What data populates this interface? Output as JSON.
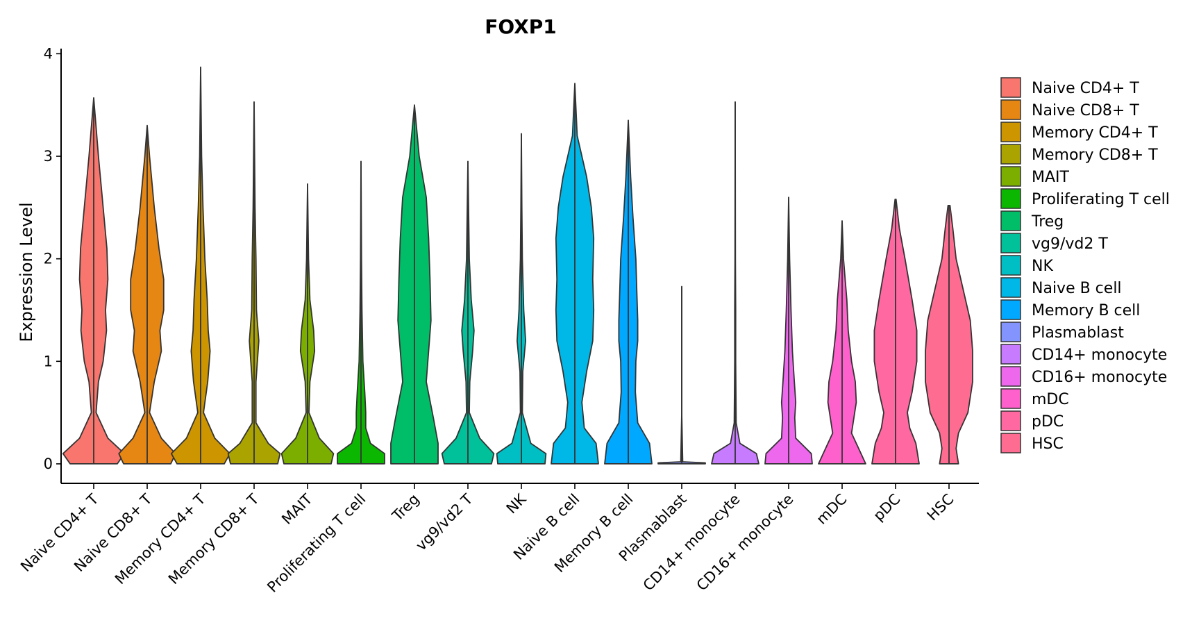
{
  "chart_data": {
    "type": "violin",
    "title": "FOXP1",
    "xlabel": "",
    "ylabel": "Expression Level",
    "ylim": [
      -0.19,
      4.05
    ],
    "yticks": [
      "0",
      "1",
      "2",
      "3",
      "4"
    ],
    "categories": [
      "Naive CD4+ T",
      "Naive CD8+ T",
      "Memory CD4+ T",
      "Memory CD8+ T",
      "MAIT",
      "Proliferating T cell",
      "Treg",
      "vg9/vd2 T",
      "NK",
      "Naive B cell",
      "Memory B cell",
      "Plasmablast",
      "CD14+ monocyte",
      "CD16+ monocyte",
      "mDC",
      "pDC",
      "HSC"
    ],
    "colors": [
      "#F8766D",
      "#E68613",
      "#CD9600",
      "#ABA300",
      "#7CAE00",
      "#0CB702",
      "#00BE67",
      "#00C19A",
      "#00BFC4",
      "#00B8E7",
      "#00A9FF",
      "#8494FF",
      "#C77CFF",
      "#ED68ED",
      "#FF61CC",
      "#FF68A1",
      "#FF6C91"
    ],
    "legend_entries": [
      "Naive CD4+ T",
      "Naive CD8+ T",
      "Memory CD4+ T",
      "Memory CD8+ T",
      "MAIT",
      "Proliferating T cell",
      "Treg",
      "vg9/vd2 T",
      "NK",
      "Naive B cell",
      "Memory B cell",
      "Plasmablast",
      "CD14+ monocyte",
      "CD16+ monocyte",
      "mDC",
      "pDC",
      "HSC"
    ],
    "legend_position": "right",
    "violins": [
      {
        "name": "Naive CD4+ T",
        "max": 3.57,
        "profile": [
          [
            0,
            0.5
          ],
          [
            0.1,
            0.65
          ],
          [
            0.25,
            0.3
          ],
          [
            0.5,
            0.05
          ],
          [
            0.8,
            0.1
          ],
          [
            1.0,
            0.2
          ],
          [
            1.3,
            0.27
          ],
          [
            1.5,
            0.25
          ],
          [
            1.8,
            0.3
          ],
          [
            2.1,
            0.28
          ],
          [
            2.5,
            0.2
          ],
          [
            3.0,
            0.1
          ],
          [
            3.57,
            0
          ]
        ]
      },
      {
        "name": "Naive CD8+ T",
        "max": 3.3,
        "profile": [
          [
            0,
            0.5
          ],
          [
            0.1,
            0.6
          ],
          [
            0.25,
            0.3
          ],
          [
            0.5,
            0.05
          ],
          [
            0.8,
            0.15
          ],
          [
            1.1,
            0.3
          ],
          [
            1.3,
            0.27
          ],
          [
            1.5,
            0.35
          ],
          [
            1.8,
            0.35
          ],
          [
            2.1,
            0.25
          ],
          [
            2.5,
            0.15
          ],
          [
            3.0,
            0.05
          ],
          [
            3.3,
            0
          ]
        ]
      },
      {
        "name": "Memory CD4+ T",
        "max": 3.87,
        "profile": [
          [
            0,
            0.5
          ],
          [
            0.1,
            0.62
          ],
          [
            0.25,
            0.3
          ],
          [
            0.5,
            0.06
          ],
          [
            0.8,
            0.15
          ],
          [
            1.1,
            0.2
          ],
          [
            1.3,
            0.16
          ],
          [
            1.6,
            0.14
          ],
          [
            2.0,
            0.09
          ],
          [
            2.5,
            0.05
          ],
          [
            3.0,
            0.02
          ],
          [
            3.87,
            0
          ]
        ]
      },
      {
        "name": "Memory CD8+ T",
        "max": 3.53,
        "profile": [
          [
            0,
            0.5
          ],
          [
            0.1,
            0.55
          ],
          [
            0.2,
            0.3
          ],
          [
            0.4,
            0.04
          ],
          [
            0.8,
            0.04
          ],
          [
            1.2,
            0.1
          ],
          [
            1.5,
            0.05
          ],
          [
            2.0,
            0.04
          ],
          [
            2.5,
            0.02
          ],
          [
            3.53,
            0
          ]
        ]
      },
      {
        "name": "MAIT",
        "max": 2.73,
        "profile": [
          [
            0,
            0.5
          ],
          [
            0.1,
            0.55
          ],
          [
            0.25,
            0.25
          ],
          [
            0.5,
            0.03
          ],
          [
            0.8,
            0.05
          ],
          [
            1.1,
            0.15
          ],
          [
            1.3,
            0.13
          ],
          [
            1.6,
            0.05
          ],
          [
            2.0,
            0.02
          ],
          [
            2.73,
            0
          ]
        ]
      },
      {
        "name": "Proliferating T cell",
        "max": 2.95,
        "profile": [
          [
            0,
            0.5
          ],
          [
            0.1,
            0.5
          ],
          [
            0.2,
            0.2
          ],
          [
            0.35,
            0.1
          ],
          [
            0.5,
            0.1
          ],
          [
            0.7,
            0.08
          ],
          [
            1.0,
            0.04
          ],
          [
            1.5,
            0.02
          ],
          [
            2.0,
            0.01
          ],
          [
            2.95,
            0
          ]
        ]
      },
      {
        "name": "Treg",
        "max": 3.5,
        "profile": [
          [
            0,
            0.5
          ],
          [
            0.2,
            0.5
          ],
          [
            0.45,
            0.4
          ],
          [
            0.8,
            0.25
          ],
          [
            1.1,
            0.3
          ],
          [
            1.4,
            0.35
          ],
          [
            1.8,
            0.33
          ],
          [
            2.2,
            0.3
          ],
          [
            2.6,
            0.25
          ],
          [
            3.0,
            0.1
          ],
          [
            3.5,
            0
          ]
        ]
      },
      {
        "name": "vg9/vd2 T",
        "max": 2.95,
        "profile": [
          [
            0,
            0.5
          ],
          [
            0.1,
            0.55
          ],
          [
            0.25,
            0.25
          ],
          [
            0.5,
            0.03
          ],
          [
            0.8,
            0.04
          ],
          [
            1.1,
            0.1
          ],
          [
            1.3,
            0.13
          ],
          [
            1.6,
            0.07
          ],
          [
            2.0,
            0.03
          ],
          [
            2.95,
            0
          ]
        ]
      },
      {
        "name": "NK",
        "max": 3.22,
        "profile": [
          [
            0,
            0.5
          ],
          [
            0.1,
            0.52
          ],
          [
            0.2,
            0.2
          ],
          [
            0.5,
            0.02
          ],
          [
            0.9,
            0.03
          ],
          [
            1.2,
            0.09
          ],
          [
            1.5,
            0.05
          ],
          [
            2.0,
            0.02
          ],
          [
            2.5,
            0.01
          ],
          [
            3.22,
            0
          ]
        ]
      },
      {
        "name": "Naive B cell",
        "max": 3.71,
        "profile": [
          [
            0,
            0.5
          ],
          [
            0.2,
            0.45
          ],
          [
            0.35,
            0.2
          ],
          [
            0.6,
            0.15
          ],
          [
            0.9,
            0.25
          ],
          [
            1.2,
            0.38
          ],
          [
            1.5,
            0.4
          ],
          [
            1.8,
            0.38
          ],
          [
            2.2,
            0.4
          ],
          [
            2.5,
            0.35
          ],
          [
            2.8,
            0.25
          ],
          [
            3.2,
            0.05
          ],
          [
            3.71,
            0
          ]
        ]
      },
      {
        "name": "Memory B cell",
        "max": 3.35,
        "profile": [
          [
            0,
            0.5
          ],
          [
            0.2,
            0.45
          ],
          [
            0.4,
            0.2
          ],
          [
            0.7,
            0.15
          ],
          [
            1.0,
            0.16
          ],
          [
            1.2,
            0.2
          ],
          [
            1.4,
            0.2
          ],
          [
            1.7,
            0.18
          ],
          [
            2.0,
            0.16
          ],
          [
            2.4,
            0.1
          ],
          [
            2.8,
            0.05
          ],
          [
            3.35,
            0
          ]
        ]
      },
      {
        "name": "Plasmablast",
        "max": 1.73,
        "profile": [
          [
            0,
            0.5
          ],
          [
            0.01,
            0.5
          ],
          [
            0.02,
            0.02
          ],
          [
            0.5,
            0
          ],
          [
            1.73,
            0
          ]
        ]
      },
      {
        "name": "CD14+ monocyte",
        "max": 3.53,
        "profile": [
          [
            0,
            0.5
          ],
          [
            0.1,
            0.45
          ],
          [
            0.2,
            0.1
          ],
          [
            0.4,
            0.02
          ],
          [
            1.0,
            0.01
          ],
          [
            1.5,
            0.01
          ],
          [
            2.0,
            0.005
          ],
          [
            3.53,
            0
          ]
        ]
      },
      {
        "name": "CD16+ monocyte",
        "max": 2.6,
        "profile": [
          [
            0,
            0.5
          ],
          [
            0.1,
            0.48
          ],
          [
            0.25,
            0.15
          ],
          [
            0.45,
            0.13
          ],
          [
            0.6,
            0.15
          ],
          [
            0.8,
            0.12
          ],
          [
            1.1,
            0.08
          ],
          [
            1.5,
            0.05
          ],
          [
            2.0,
            0.02
          ],
          [
            2.6,
            0
          ]
        ]
      },
      {
        "name": "mDC",
        "max": 2.37,
        "profile": [
          [
            0,
            0.5
          ],
          [
            0.15,
            0.35
          ],
          [
            0.3,
            0.2
          ],
          [
            0.45,
            0.25
          ],
          [
            0.6,
            0.3
          ],
          [
            0.8,
            0.28
          ],
          [
            1.0,
            0.2
          ],
          [
            1.3,
            0.13
          ],
          [
            1.6,
            0.1
          ],
          [
            2.0,
            0.03
          ],
          [
            2.37,
            0
          ]
        ]
      },
      {
        "name": "pDC",
        "max": 2.58,
        "profile": [
          [
            0,
            0.5
          ],
          [
            0.2,
            0.43
          ],
          [
            0.35,
            0.3
          ],
          [
            0.5,
            0.25
          ],
          [
            0.7,
            0.35
          ],
          [
            1.0,
            0.45
          ],
          [
            1.3,
            0.45
          ],
          [
            1.6,
            0.35
          ],
          [
            2.0,
            0.2
          ],
          [
            2.3,
            0.08
          ],
          [
            2.58,
            0.01
          ]
        ]
      },
      {
        "name": "HSC",
        "max": 2.52,
        "profile": [
          [
            0,
            0.2
          ],
          [
            0.15,
            0.15
          ],
          [
            0.3,
            0.2
          ],
          [
            0.5,
            0.4
          ],
          [
            0.8,
            0.5
          ],
          [
            1.1,
            0.5
          ],
          [
            1.4,
            0.45
          ],
          [
            1.7,
            0.3
          ],
          [
            2.0,
            0.15
          ],
          [
            2.3,
            0.08
          ],
          [
            2.52,
            0.02
          ]
        ]
      }
    ]
  }
}
